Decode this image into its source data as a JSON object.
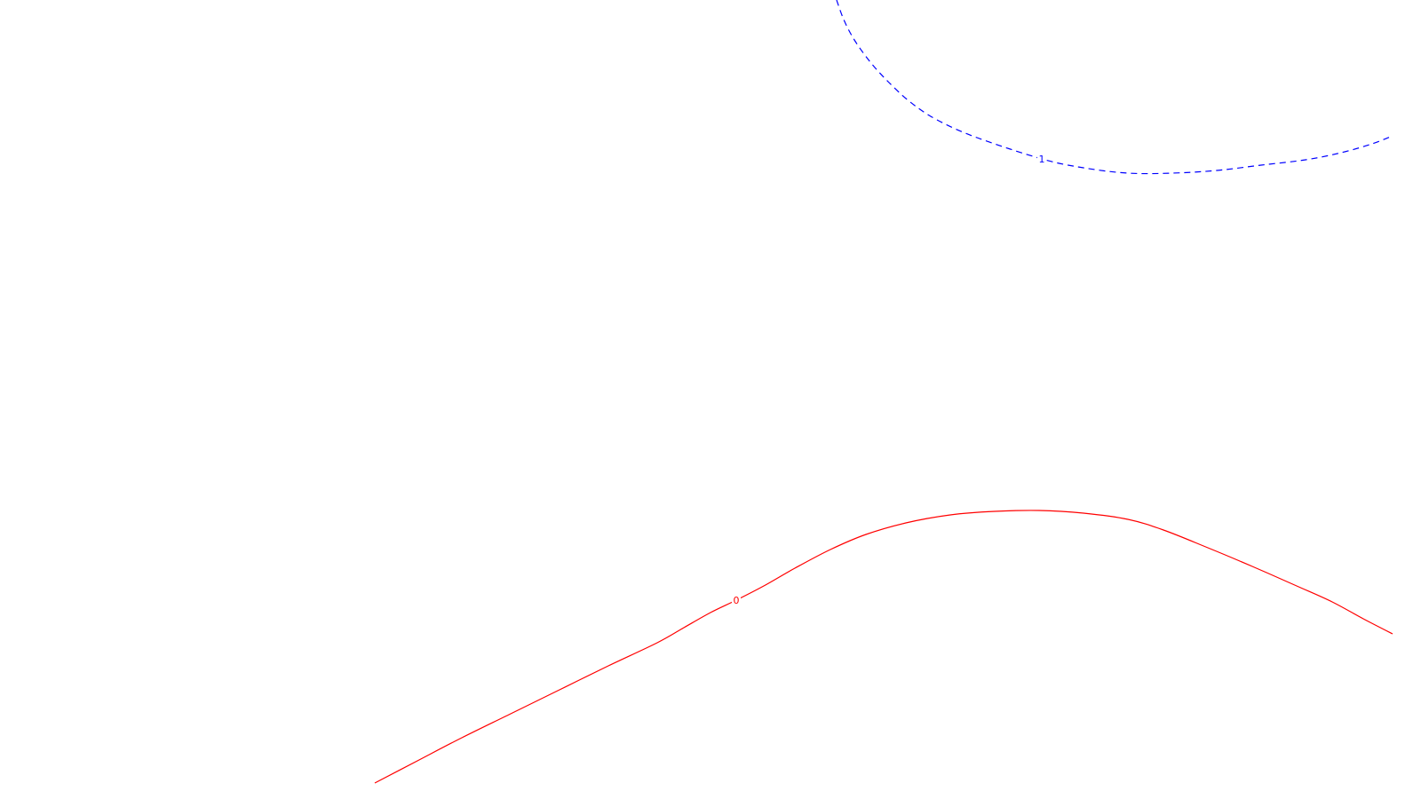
{
  "chart_data": {
    "type": "line",
    "grid": false,
    "series": [
      {
        "level_label": "0",
        "color": "#ff0000",
        "dash": "solid",
        "label_at_index": 9,
        "points": [
          [
            422,
            882
          ],
          [
            470,
            857
          ],
          [
            520,
            831
          ],
          [
            575,
            804
          ],
          [
            630,
            777
          ],
          [
            685,
            750
          ],
          [
            740,
            724
          ],
          [
            770,
            707
          ],
          [
            800,
            690
          ],
          [
            829,
            676
          ],
          [
            860,
            660
          ],
          [
            895,
            640
          ],
          [
            935,
            619
          ],
          [
            975,
            602
          ],
          [
            1020,
            589
          ],
          [
            1070,
            580
          ],
          [
            1120,
            576
          ],
          [
            1170,
            575
          ],
          [
            1220,
            578
          ],
          [
            1270,
            585
          ],
          [
            1310,
            597
          ],
          [
            1360,
            617
          ],
          [
            1410,
            638
          ],
          [
            1460,
            660
          ],
          [
            1500,
            678
          ],
          [
            1535,
            697
          ],
          [
            1568,
            714
          ]
        ]
      },
      {
        "level_label": "1",
        "color": "#0000ff",
        "dash": "dashed",
        "label_at_index": 8,
        "points": [
          [
            942,
            0
          ],
          [
            950,
            22
          ],
          [
            962,
            45
          ],
          [
            980,
            70
          ],
          [
            1000,
            92
          ],
          [
            1025,
            115
          ],
          [
            1055,
            135
          ],
          [
            1100,
            155
          ],
          [
            1173,
            179
          ],
          [
            1220,
            189
          ],
          [
            1270,
            195
          ],
          [
            1320,
            195
          ],
          [
            1370,
            192
          ],
          [
            1420,
            186
          ],
          [
            1470,
            180
          ],
          [
            1510,
            172
          ],
          [
            1545,
            162
          ],
          [
            1568,
            153
          ]
        ]
      }
    ]
  }
}
